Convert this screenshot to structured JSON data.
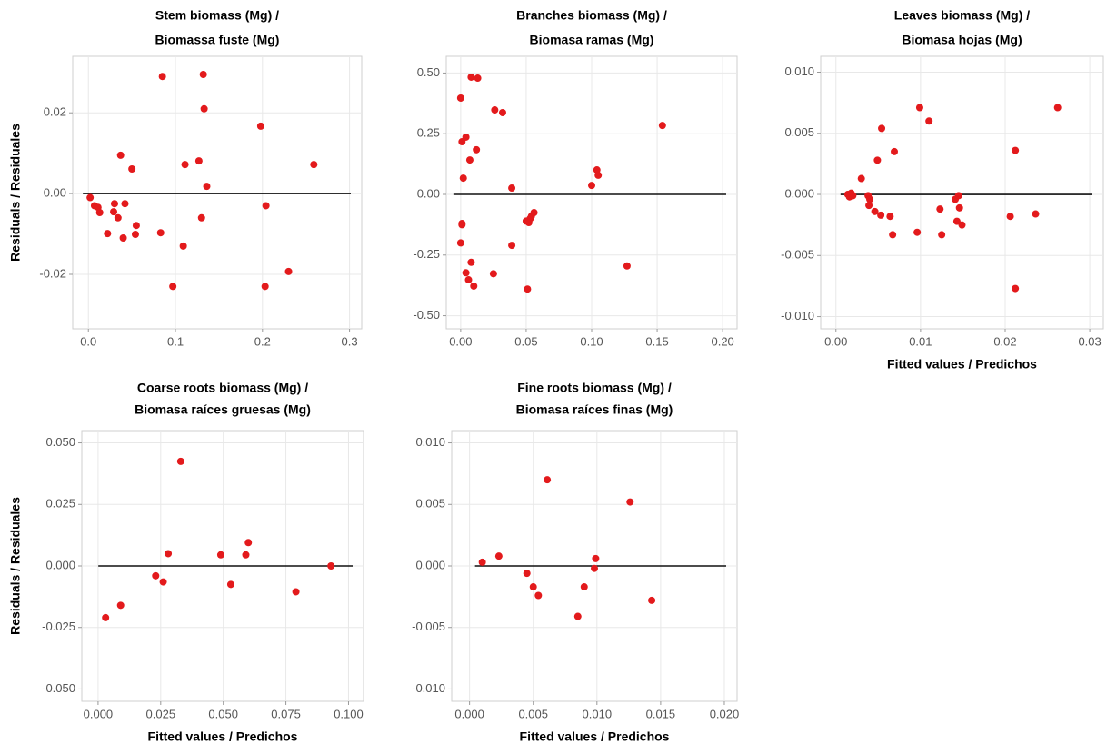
{
  "chart_data": [
    {
      "type": "scatter",
      "title": [
        "Stem biomass (Mg) /",
        "Biomassa fuste (Mg)"
      ],
      "y_label": "Residuals / Residuales",
      "color": "#e31a1c",
      "grid": true,
      "hline": 0,
      "xlim": [
        -0.018,
        0.314
      ],
      "ylim": [
        -0.0335,
        0.034
      ],
      "xticks": [
        {
          "value": 0,
          "label": "0.0"
        },
        0.1,
        0.2,
        0.3
      ],
      "yticks": [
        -0.02,
        {
          "value": 0,
          "label": "0.00"
        },
        0.02
      ],
      "x": [
        0.085,
        0.132,
        0.133,
        0.198,
        0.259,
        0.127,
        0.111,
        0.136,
        0.037,
        0.05,
        0.13,
        0.204,
        0.083,
        0.109,
        0.097,
        0.203,
        0.23,
        0.022,
        0.054,
        0.055,
        0.04,
        0.029,
        0.03,
        0.034,
        0.042,
        0.002,
        0.007,
        0.011,
        0.013
      ],
      "values": [
        0.029,
        0.0295,
        0.021,
        0.0167,
        0.0072,
        0.0081,
        0.0072,
        0.0018,
        0.0095,
        0.0061,
        -0.006,
        -0.003,
        -0.0097,
        -0.013,
        -0.023,
        -0.023,
        -0.0193,
        -0.0099,
        -0.0101,
        -0.0079,
        -0.011,
        -0.0045,
        -0.0025,
        -0.006,
        -0.0025,
        -0.001,
        -0.003,
        -0.0034,
        -0.0047
      ]
    },
    {
      "type": "scatter",
      "title": [
        "Branches biomass (Mg) /",
        "Biomasa ramas (Mg)"
      ],
      "color": "#e31a1c",
      "grid": true,
      "hline": 0,
      "xlim": [
        -0.011,
        0.211
      ],
      "ylim": [
        -0.554,
        0.569
      ],
      "xticks": [
        {
          "value": 0,
          "label": "0.00"
        },
        0.05,
        {
          "value": 0.1,
          "label": "0.10"
        },
        0.15,
        {
          "value": 0.2,
          "label": "0.20"
        }
      ],
      "yticks": [
        {
          "value": -0.5,
          "label": "-0.50"
        },
        -0.25,
        {
          "value": 0,
          "label": "0.00"
        },
        0.25,
        {
          "value": 0.5,
          "label": "0.50"
        }
      ],
      "x": [
        0.0,
        0.008,
        0.013,
        0.026,
        0.032,
        0.001,
        0.004,
        0.012,
        0.007,
        0.002,
        0.039,
        0.039,
        0.1,
        0.104,
        0.105,
        0.154,
        0.001,
        0.0,
        0.001,
        0.004,
        0.006,
        0.008,
        0.01,
        0.025,
        0.05,
        0.052,
        0.053,
        0.054,
        0.056,
        0.051,
        0.127
      ],
      "values": [
        0.397,
        0.483,
        0.479,
        0.348,
        0.337,
        0.217,
        0.236,
        0.184,
        0.142,
        0.067,
        0.026,
        -0.21,
        0.037,
        0.101,
        0.079,
        0.284,
        -0.125,
        -0.2,
        -0.12,
        -0.323,
        -0.352,
        -0.28,
        -0.378,
        -0.327,
        -0.11,
        -0.116,
        -0.1,
        -0.09,
        -0.075,
        -0.39,
        -0.295
      ]
    },
    {
      "type": "scatter",
      "title": [
        "Leaves biomass (Mg) /",
        "Biomasa hojas (Mg)"
      ],
      "x_label": "Fitted values / Predichos",
      "color": "#e31a1c",
      "grid": true,
      "hline": 0,
      "xlim": [
        -0.0018,
        0.0316
      ],
      "ylim": [
        -0.011,
        0.0113
      ],
      "xticks": [
        {
          "value": 0,
          "label": "0.00"
        },
        0.01,
        0.02,
        0.03
      ],
      "yticks": [
        {
          "value": -0.01,
          "label": "-0.010"
        },
        -0.005,
        {
          "value": 0,
          "label": "0.000"
        },
        0.005,
        {
          "value": 0.01,
          "label": "0.010"
        }
      ],
      "x": [
        0.0014,
        0.0016,
        0.0018,
        0.002,
        0.003,
        0.0038,
        0.004,
        0.0039,
        0.0046,
        0.0053,
        0.0049,
        0.0054,
        0.0064,
        0.0067,
        0.0069,
        0.0099,
        0.011,
        0.0096,
        0.0123,
        0.0125,
        0.0141,
        0.0145,
        0.0146,
        0.0143,
        0.0149,
        0.0206,
        0.0212,
        0.0212,
        0.0236,
        0.0262
      ],
      "values": [
        0.0,
        -0.0002,
        0.0001,
        -0.0001,
        0.0013,
        -0.0001,
        -0.0004,
        -0.0009,
        -0.0014,
        -0.0017,
        0.0028,
        0.0054,
        -0.0018,
        -0.0033,
        0.0035,
        0.0071,
        0.006,
        -0.0031,
        -0.0012,
        -0.0033,
        -0.0004,
        -0.0001,
        -0.0011,
        -0.0022,
        -0.0025,
        -0.0018,
        0.0036,
        -0.0077,
        -0.0016,
        0.0071
      ]
    },
    {
      "type": "scatter",
      "title": [
        "Coarse roots biomass (Mg) /",
        "Biomasa raíces gruesas (Mg)"
      ],
      "y_label": "Residuals / Residuales",
      "x_label": "Fitted values / Predichos",
      "color": "#e31a1c",
      "grid": true,
      "hline": 0,
      "xlim": [
        -0.0065,
        0.106
      ],
      "ylim": [
        -0.055,
        0.055
      ],
      "xticks": [
        {
          "value": 0,
          "label": "0.000"
        },
        0.025,
        {
          "value": 0.05,
          "label": "0.050"
        },
        0.075,
        {
          "value": 0.1,
          "label": "0.100"
        }
      ],
      "yticks": [
        {
          "value": -0.05,
          "label": "-0.050"
        },
        -0.025,
        {
          "value": 0,
          "label": "0.000"
        },
        0.025,
        {
          "value": 0.05,
          "label": "0.050"
        }
      ],
      "x": [
        0.003,
        0.009,
        0.023,
        0.026,
        0.028,
        0.033,
        0.049,
        0.053,
        0.059,
        0.06,
        0.079,
        0.093
      ],
      "values": [
        -0.021,
        -0.016,
        -0.004,
        -0.0065,
        0.005,
        0.0425,
        0.0045,
        -0.0075,
        0.0045,
        0.0095,
        -0.0105,
        0.0
      ]
    },
    {
      "type": "scatter",
      "title": [
        "Fine roots biomass (Mg) /",
        "Biomasa raíces finas (Mg)"
      ],
      "x_label": "Fitted values / Predichos",
      "color": "#e31a1c",
      "grid": true,
      "hline": 0,
      "xlim": [
        -0.0014,
        0.021
      ],
      "ylim": [
        -0.011,
        0.011
      ],
      "xticks": [
        {
          "value": 0,
          "label": "0.000"
        },
        0.005,
        {
          "value": 0.01,
          "label": "0.010"
        },
        0.015,
        {
          "value": 0.02,
          "label": "0.020"
        }
      ],
      "yticks": [
        {
          "value": -0.01,
          "label": "-0.010"
        },
        -0.005,
        {
          "value": 0,
          "label": "0.000"
        },
        0.005,
        {
          "value": 0.01,
          "label": "0.010"
        }
      ],
      "x": [
        0.001,
        0.0023,
        0.0045,
        0.005,
        0.0054,
        0.0061,
        0.0085,
        0.009,
        0.0098,
        0.0099,
        0.0126,
        0.0143
      ],
      "values": [
        0.0003,
        0.0008,
        -0.0006,
        -0.0017,
        -0.0024,
        0.007,
        -0.0041,
        -0.0017,
        -0.0002,
        0.0006,
        0.0052,
        -0.0028
      ]
    }
  ]
}
